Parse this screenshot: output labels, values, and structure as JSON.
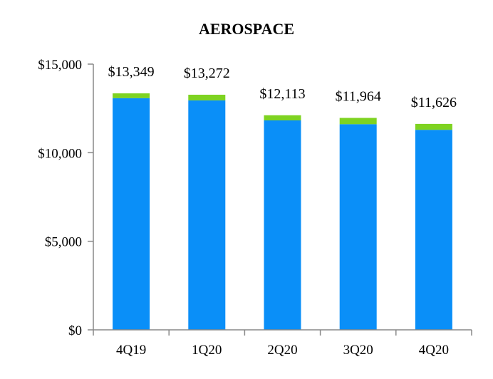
{
  "chart_data": {
    "type": "bar",
    "stacked": true,
    "title": "AEROSPACE",
    "xlabel": "",
    "ylabel": "",
    "categories": [
      "4Q19",
      "1Q20",
      "2Q20",
      "3Q20",
      "4Q20"
    ],
    "series": [
      {
        "values": [
          13079,
          12952,
          11823,
          11609,
          11291
        ],
        "color": "#0a8ff8"
      },
      {
        "values": [
          270,
          320,
          290,
          355,
          335
        ],
        "color": "#7ed321"
      }
    ],
    "totals": [
      13349,
      13272,
      12113,
      11964,
      11626
    ],
    "total_labels": [
      "$13,349",
      "$13,272",
      "$12,113",
      "$11,964",
      "$11,626"
    ],
    "ylim": [
      0,
      15000
    ],
    "yticks": [
      0,
      5000,
      10000,
      15000
    ],
    "ytick_labels": [
      "$0",
      "$5,000",
      "$10,000",
      "$15,000"
    ],
    "grid": false,
    "legend": "none"
  }
}
